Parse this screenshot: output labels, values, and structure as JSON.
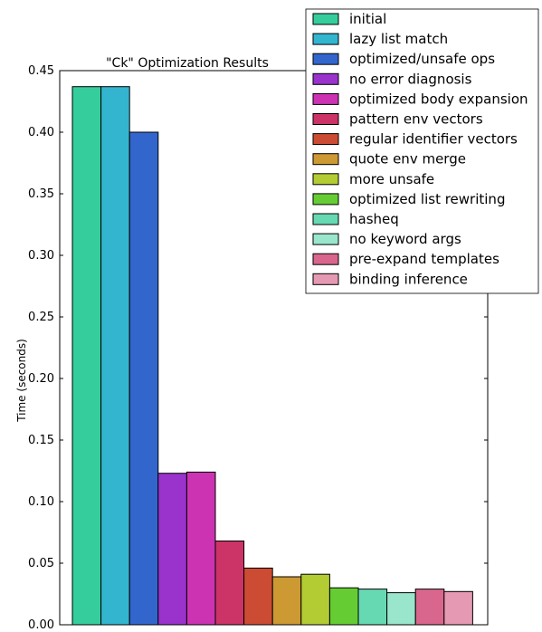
{
  "chart_data": {
    "type": "bar",
    "title": "\"Ck\" Optimization Results",
    "xlabel": "",
    "ylabel": "Time (seconds)",
    "ylim": [
      0,
      0.45
    ],
    "yticks": [
      "0.00",
      "0.05",
      "0.10",
      "0.15",
      "0.20",
      "0.25",
      "0.30",
      "0.35",
      "0.40",
      "0.45"
    ],
    "grid": false,
    "legend_position": "top-right",
    "series": [
      {
        "name": "initial",
        "value": 0.437,
        "color": "#36cd9d"
      },
      {
        "name": "lazy list match",
        "value": 0.437,
        "color": "#33b5cf"
      },
      {
        "name": "optimized/unsafe ops",
        "value": 0.4,
        "color": "#3366cc"
      },
      {
        "name": "no error diagnosis",
        "value": 0.123,
        "color": "#9933cc"
      },
      {
        "name": "optimized body expansion",
        "value": 0.124,
        "color": "#cc33b3"
      },
      {
        "name": "pattern env vectors",
        "value": 0.068,
        "color": "#cc3366"
      },
      {
        "name": "regular identifier vectors",
        "value": 0.046,
        "color": "#cc4c33"
      },
      {
        "name": "quote env merge",
        "value": 0.039,
        "color": "#cc9933"
      },
      {
        "name": "more unsafe",
        "value": 0.041,
        "color": "#b3cc33"
      },
      {
        "name": "optimized list rewriting",
        "value": 0.03,
        "color": "#66cc33"
      },
      {
        "name": "hasheq",
        "value": 0.029,
        "color": "#66d9b3"
      },
      {
        "name": "no keyword args",
        "value": 0.026,
        "color": "#99e6cc"
      },
      {
        "name": "pre-expand templates",
        "value": 0.029,
        "color": "#d9668c"
      },
      {
        "name": "binding inference",
        "value": 0.027,
        "color": "#e699b3"
      }
    ]
  }
}
